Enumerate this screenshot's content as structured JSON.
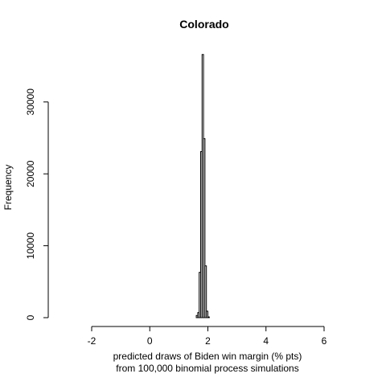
{
  "chart_data": {
    "type": "bar",
    "title": "Colorado",
    "xlabel_line1": "predicted draws of Biden win margin (% pts)",
    "xlabel_line2": "from 100,000 binomial process simulations",
    "ylabel": "Frequency",
    "xlim": [
      -2,
      6
    ],
    "ylim": [
      0,
      36800
    ],
    "xticks": [
      -2,
      0,
      2,
      4,
      6
    ],
    "yticks": [
      0,
      10000,
      20000,
      30000
    ],
    "bin_width": 0.05,
    "bins": [
      {
        "x0": 1.6,
        "count": 300
      },
      {
        "x0": 1.65,
        "count": 700
      },
      {
        "x0": 1.7,
        "count": 6300
      },
      {
        "x0": 1.75,
        "count": 23100
      },
      {
        "x0": 1.8,
        "count": 36600
      },
      {
        "x0": 1.85,
        "count": 24900
      },
      {
        "x0": 1.9,
        "count": 7200
      },
      {
        "x0": 1.95,
        "count": 900
      },
      {
        "x0": 2.0,
        "count": 100
      }
    ]
  }
}
